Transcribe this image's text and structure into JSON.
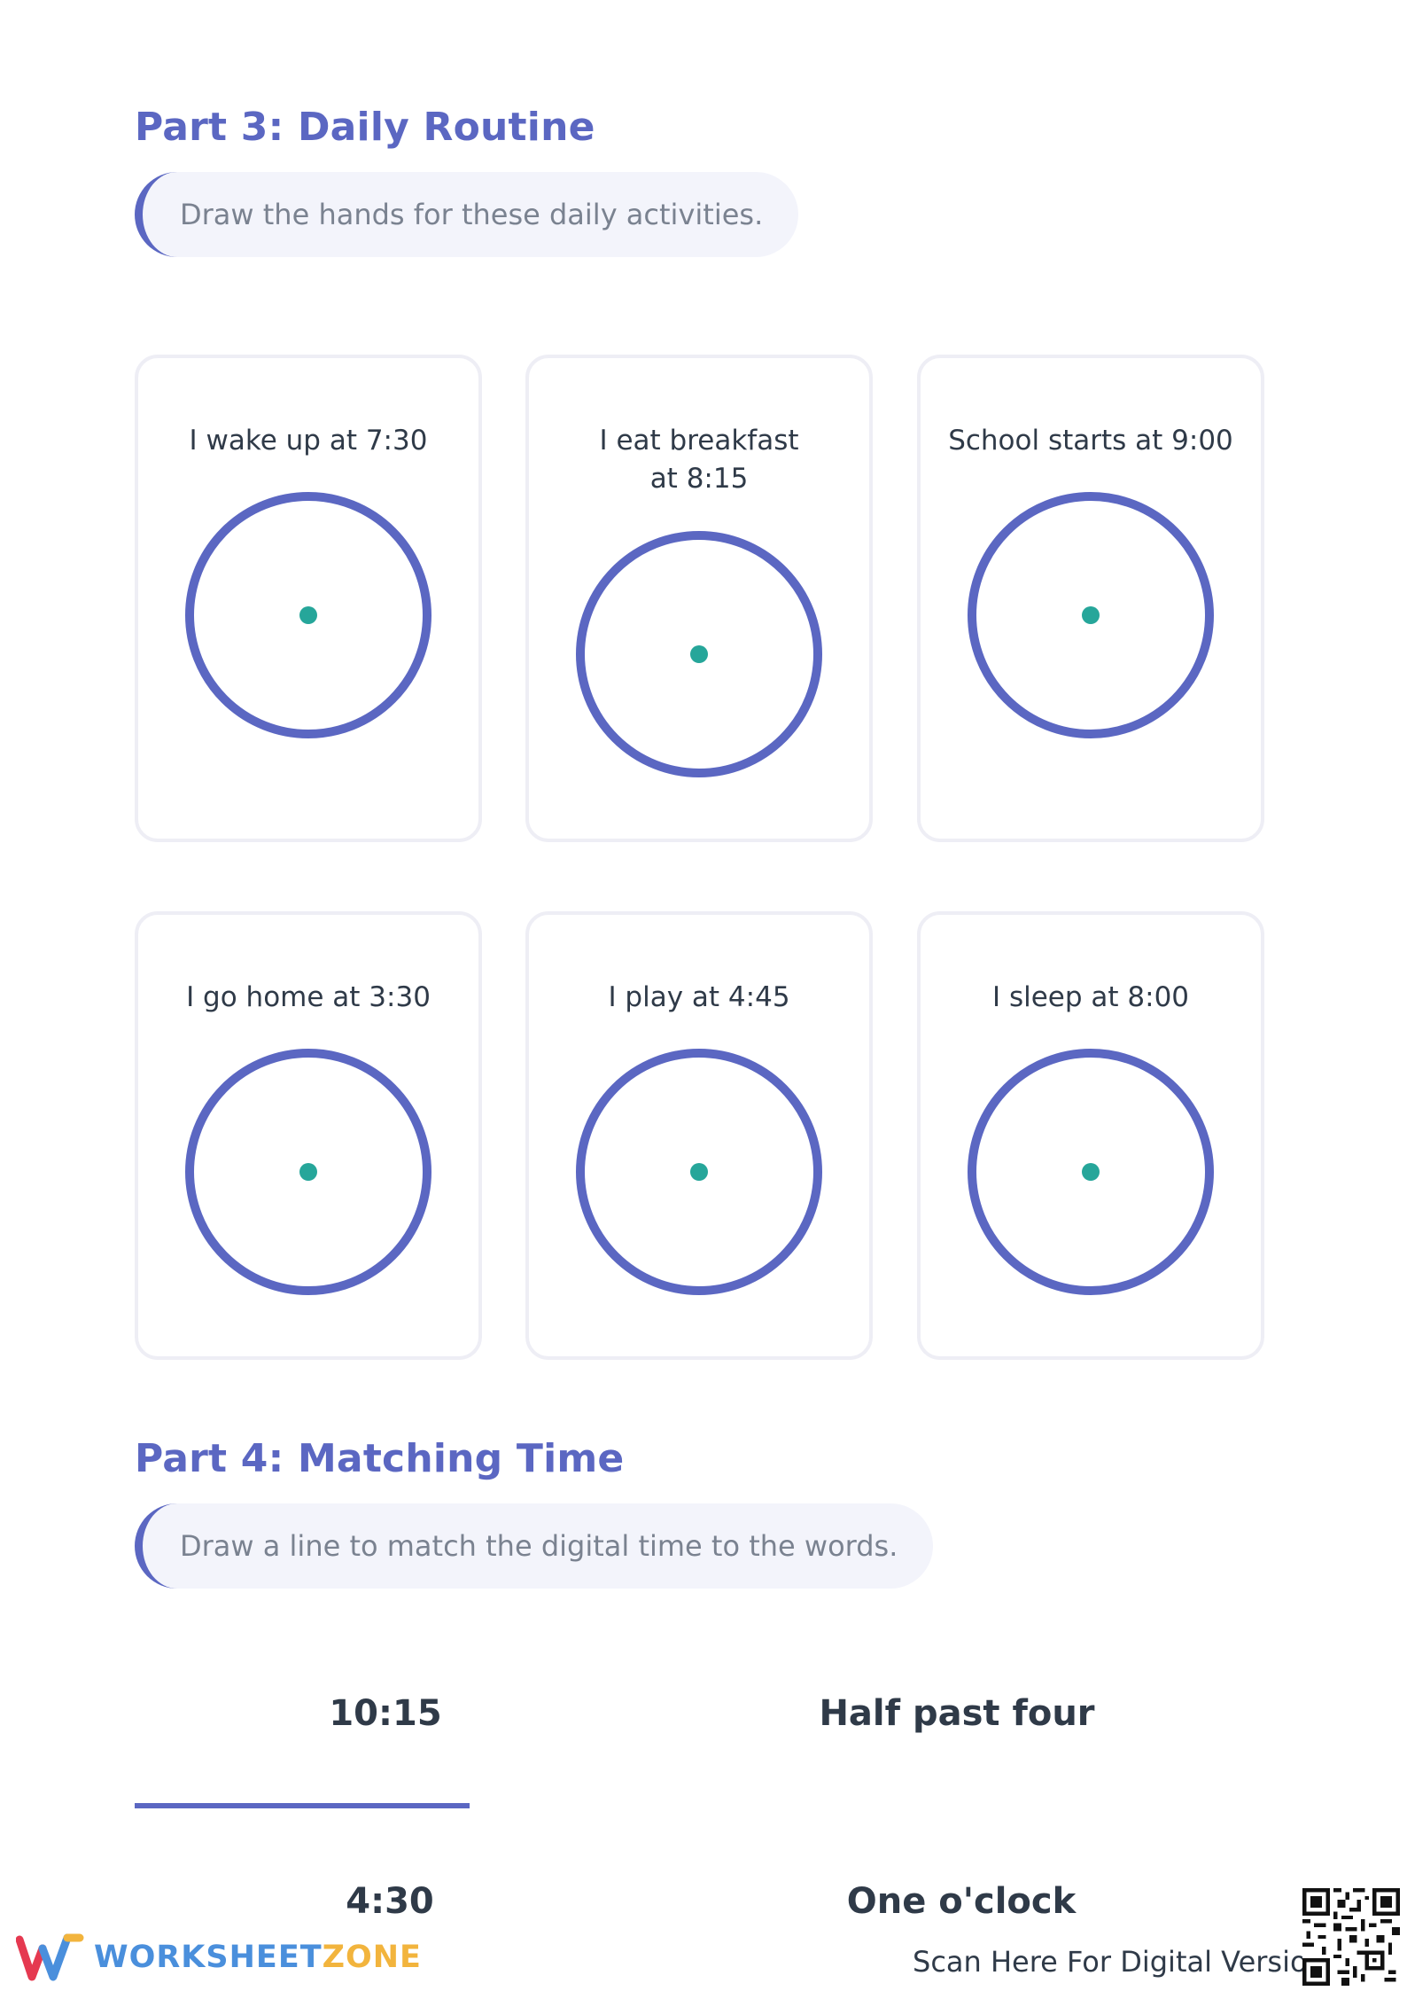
{
  "part3": {
    "title": "Part 3: Daily Routine",
    "instruction": "Draw the hands for these daily activities.",
    "cards": [
      {
        "text": "I wake up at 7:30"
      },
      {
        "text": "I eat breakfast at 8:15"
      },
      {
        "text": "School starts at 9:00"
      },
      {
        "text": "I go home at 3:30"
      },
      {
        "text": "I play at 4:45"
      },
      {
        "text": "I sleep at 8:00"
      }
    ]
  },
  "part4": {
    "title": "Part 4: Matching Time",
    "instruction": "Draw a line to match the digital time to the words.",
    "digital_times": [
      "10:15",
      "4:30"
    ],
    "word_times": [
      "Half past four",
      "One o'clock"
    ]
  },
  "footer": {
    "logo_word1": "WORKSHEET",
    "logo_word2": "ZONE",
    "scan_text": "Scan Here For Digital Version"
  },
  "colors": {
    "accent": "#5b67c2",
    "clock_center": "#26a69a",
    "logo_blue": "#4a8fdc",
    "logo_yellow": "#f2b43d"
  },
  "icons": {
    "logo": "worksheetzone-w-logo",
    "qr": "qr-code-icon"
  }
}
